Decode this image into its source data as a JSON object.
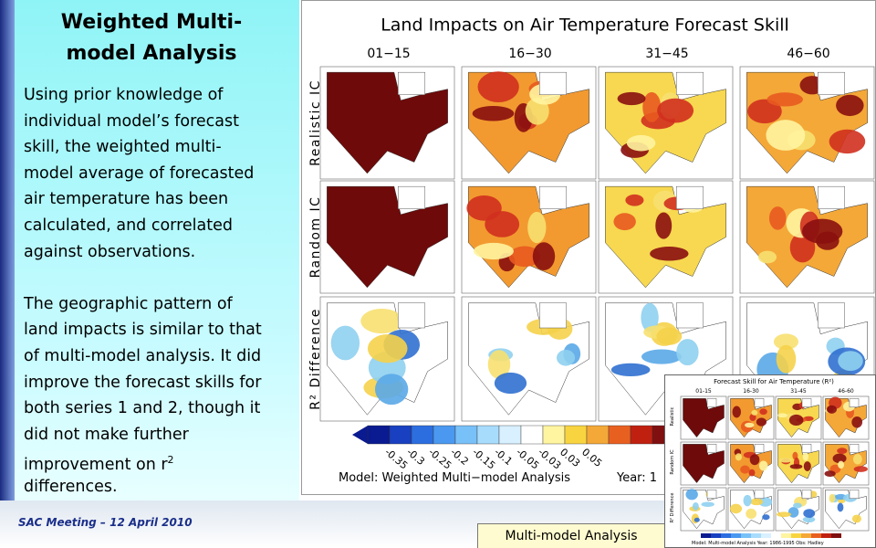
{
  "left_panel": {
    "title_lines": [
      "Weighted Multi-",
      "model Analysis"
    ],
    "body_lines": [
      "Using prior knowledge of",
      "individual model’s forecast",
      "skill, the weighted multi-",
      "model average of forecasted",
      "air temperature has been",
      "calculated, and correlated",
      "against observations.",
      "",
      "The geographic pattern of",
      "land impacts is similar to that",
      "of multi-model analysis. It did",
      "improve the forecast skills for",
      "both series 1 and 2, though it",
      "did not make further",
      "improvement on r"
    ],
    "sup": "2",
    "last_line": "differences."
  },
  "figure": {
    "title": "Land Impacts on Air Temperature Forecast Skill",
    "columns": [
      "01−15",
      "16−30",
      "31−45",
      "46−60"
    ],
    "rows": [
      "Realistic IC",
      "Random IC",
      "R² Difference"
    ],
    "colorbar_labels": [
      "-0.35",
      "-0.3",
      "-0.25",
      "-0.2",
      "-0.15",
      "-0.1",
      "-0.05",
      "-0.03",
      "0.03",
      "0.05"
    ],
    "caption_model": "Model: Weighted Multi−model Analysis",
    "caption_year": "Year: 1"
  },
  "inset": {
    "title": "Forecast Skill for Air Temperature (R²)",
    "columns": [
      "01-15",
      "16-30",
      "31-45",
      "46-60"
    ],
    "rows": [
      "Realistic",
      "Random IC",
      "R² Difference"
    ],
    "caption": "Model: Multi-model Analysis   Year: 1986-1995   Obs: Hadley"
  },
  "footer": {
    "meeting": "SAC Meeting – 12 April 2010",
    "tab": "Multi-model Analysis"
  }
}
